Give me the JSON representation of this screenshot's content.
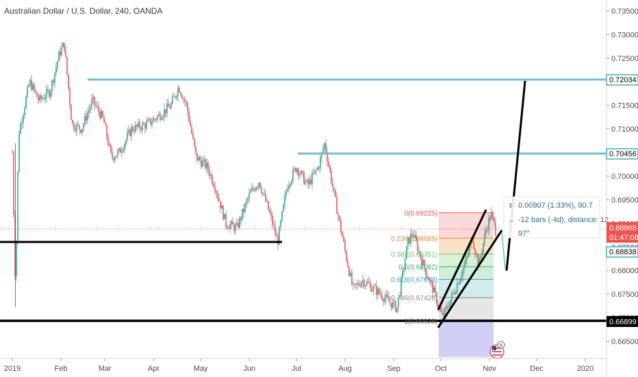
{
  "header": {
    "symbol_title": "Australian Dollar / U.S. Dollar, 240, OANDA"
  },
  "colors": {
    "up": "#26a69a",
    "down": "#ef5350",
    "candle_body": "#3a3f4a",
    "level_line": "#72bfd1",
    "support_line": "#000000",
    "price_line": "#f28b8b",
    "axis_text": "#4a4a4a",
    "measure_text": "#2b6a86",
    "price_tag_red": "#ef5350",
    "price_tag_blue_border": "#72bfd1",
    "price_tag_black": "#000000"
  },
  "price_axis": {
    "ticks": [
      "0.73500",
      "0.73000",
      "0.72500",
      "0.72000",
      "0.71500",
      "0.71000",
      "0.70500",
      "0.70000",
      "0.69500",
      "0.69000",
      "0.68500",
      "0.68000",
      "0.67500",
      "0.67000",
      "0.66500"
    ],
    "tags": {
      "level_high": "0.72034",
      "level_mid": "0.70456",
      "last_price": "0.68868",
      "countdown": "01:47:08",
      "last_close": "0.68838",
      "support": "0.66899"
    }
  },
  "time_axis": {
    "labels": [
      "2019",
      "Feb",
      "Mar",
      "Apr",
      "May",
      "Jun",
      "Jul",
      "Aug",
      "Sep",
      "Oct",
      "Nov",
      "Dec",
      "2020"
    ]
  },
  "fibonacci": {
    "levels": [
      {
        "ratio": 0,
        "label": "0(0.69225)",
        "price": 0.69225
      },
      {
        "ratio": 0.236,
        "label": "0.236(0.68685)",
        "price": 0.68685
      },
      {
        "ratio": 0.382,
        "label": "0.382(0.68351)",
        "price": 0.68351
      },
      {
        "ratio": 0.5,
        "label": "0.5(0.68082)",
        "price": 0.68082
      },
      {
        "ratio": 0.618,
        "label": "0.618(0.67813)",
        "price": 0.67813
      },
      {
        "ratio": 0.786,
        "label": "0.786(0.67428)",
        "price": 0.67428
      },
      {
        "ratio": 1,
        "label": "1(0.66938)",
        "price": 0.66938
      }
    ]
  },
  "measure": {
    "line1": "0.00907 (1.33%), 90.7",
    "line2": "-12 bars (-4d), distance: 12",
    "line3": "97°"
  },
  "chart_data": {
    "type": "candlestick",
    "title": "Australian Dollar / U.S. Dollar, 240, OANDA",
    "ylim": [
      0.6625,
      0.7375
    ],
    "horizontal_levels": [
      0.72034,
      0.70456,
      0.66899
    ],
    "last_price": 0.68868,
    "close_price": 0.68838,
    "approx_close_path": [
      [
        "2019-01-01",
        0.705
      ],
      [
        "2019-01-03",
        0.676
      ],
      [
        "2019-01-05",
        0.709
      ],
      [
        "2019-01-12",
        0.72
      ],
      [
        "2019-01-18",
        0.716
      ],
      [
        "2019-01-25",
        0.718
      ],
      [
        "2019-01-31",
        0.726
      ],
      [
        "2019-02-03",
        0.728
      ],
      [
        "2019-02-08",
        0.711
      ],
      [
        "2019-02-14",
        0.71
      ],
      [
        "2019-02-21",
        0.716
      ],
      [
        "2019-02-28",
        0.712
      ],
      [
        "2019-03-05",
        0.704
      ],
      [
        "2019-03-10",
        0.705
      ],
      [
        "2019-03-18",
        0.71
      ],
      [
        "2019-03-28",
        0.711
      ],
      [
        "2019-04-05",
        0.713
      ],
      [
        "2019-04-12",
        0.715
      ],
      [
        "2019-04-17",
        0.719
      ],
      [
        "2019-04-22",
        0.715
      ],
      [
        "2019-04-28",
        0.704
      ],
      [
        "2019-05-05",
        0.702
      ],
      [
        "2019-05-10",
        0.698
      ],
      [
        "2019-05-17",
        0.69
      ],
      [
        "2019-05-24",
        0.689
      ],
      [
        "2019-06-01",
        0.696
      ],
      [
        "2019-06-07",
        0.699
      ],
      [
        "2019-06-14",
        0.692
      ],
      [
        "2019-06-19",
        0.686
      ],
      [
        "2019-06-25",
        0.698
      ],
      [
        "2019-07-01",
        0.702
      ],
      [
        "2019-07-08",
        0.698
      ],
      [
        "2019-07-15",
        0.702
      ],
      [
        "2019-07-19",
        0.707
      ],
      [
        "2019-07-25",
        0.696
      ],
      [
        "2019-08-01",
        0.684
      ],
      [
        "2019-08-06",
        0.676
      ],
      [
        "2019-08-12",
        0.678
      ],
      [
        "2019-08-20",
        0.676
      ],
      [
        "2019-08-27",
        0.674
      ],
      [
        "2019-09-03",
        0.672
      ],
      [
        "2019-09-10",
        0.686
      ],
      [
        "2019-09-13",
        0.688
      ],
      [
        "2019-09-20",
        0.681
      ],
      [
        "2019-09-26",
        0.676
      ],
      [
        "2019-10-02",
        0.67
      ],
      [
        "2019-10-10",
        0.676
      ],
      [
        "2019-10-17",
        0.682
      ],
      [
        "2019-10-21",
        0.687
      ],
      [
        "2019-10-25",
        0.681
      ],
      [
        "2019-10-30",
        0.689
      ],
      [
        "2019-11-02",
        0.692
      ],
      [
        "2019-11-05",
        0.6884
      ]
    ]
  }
}
